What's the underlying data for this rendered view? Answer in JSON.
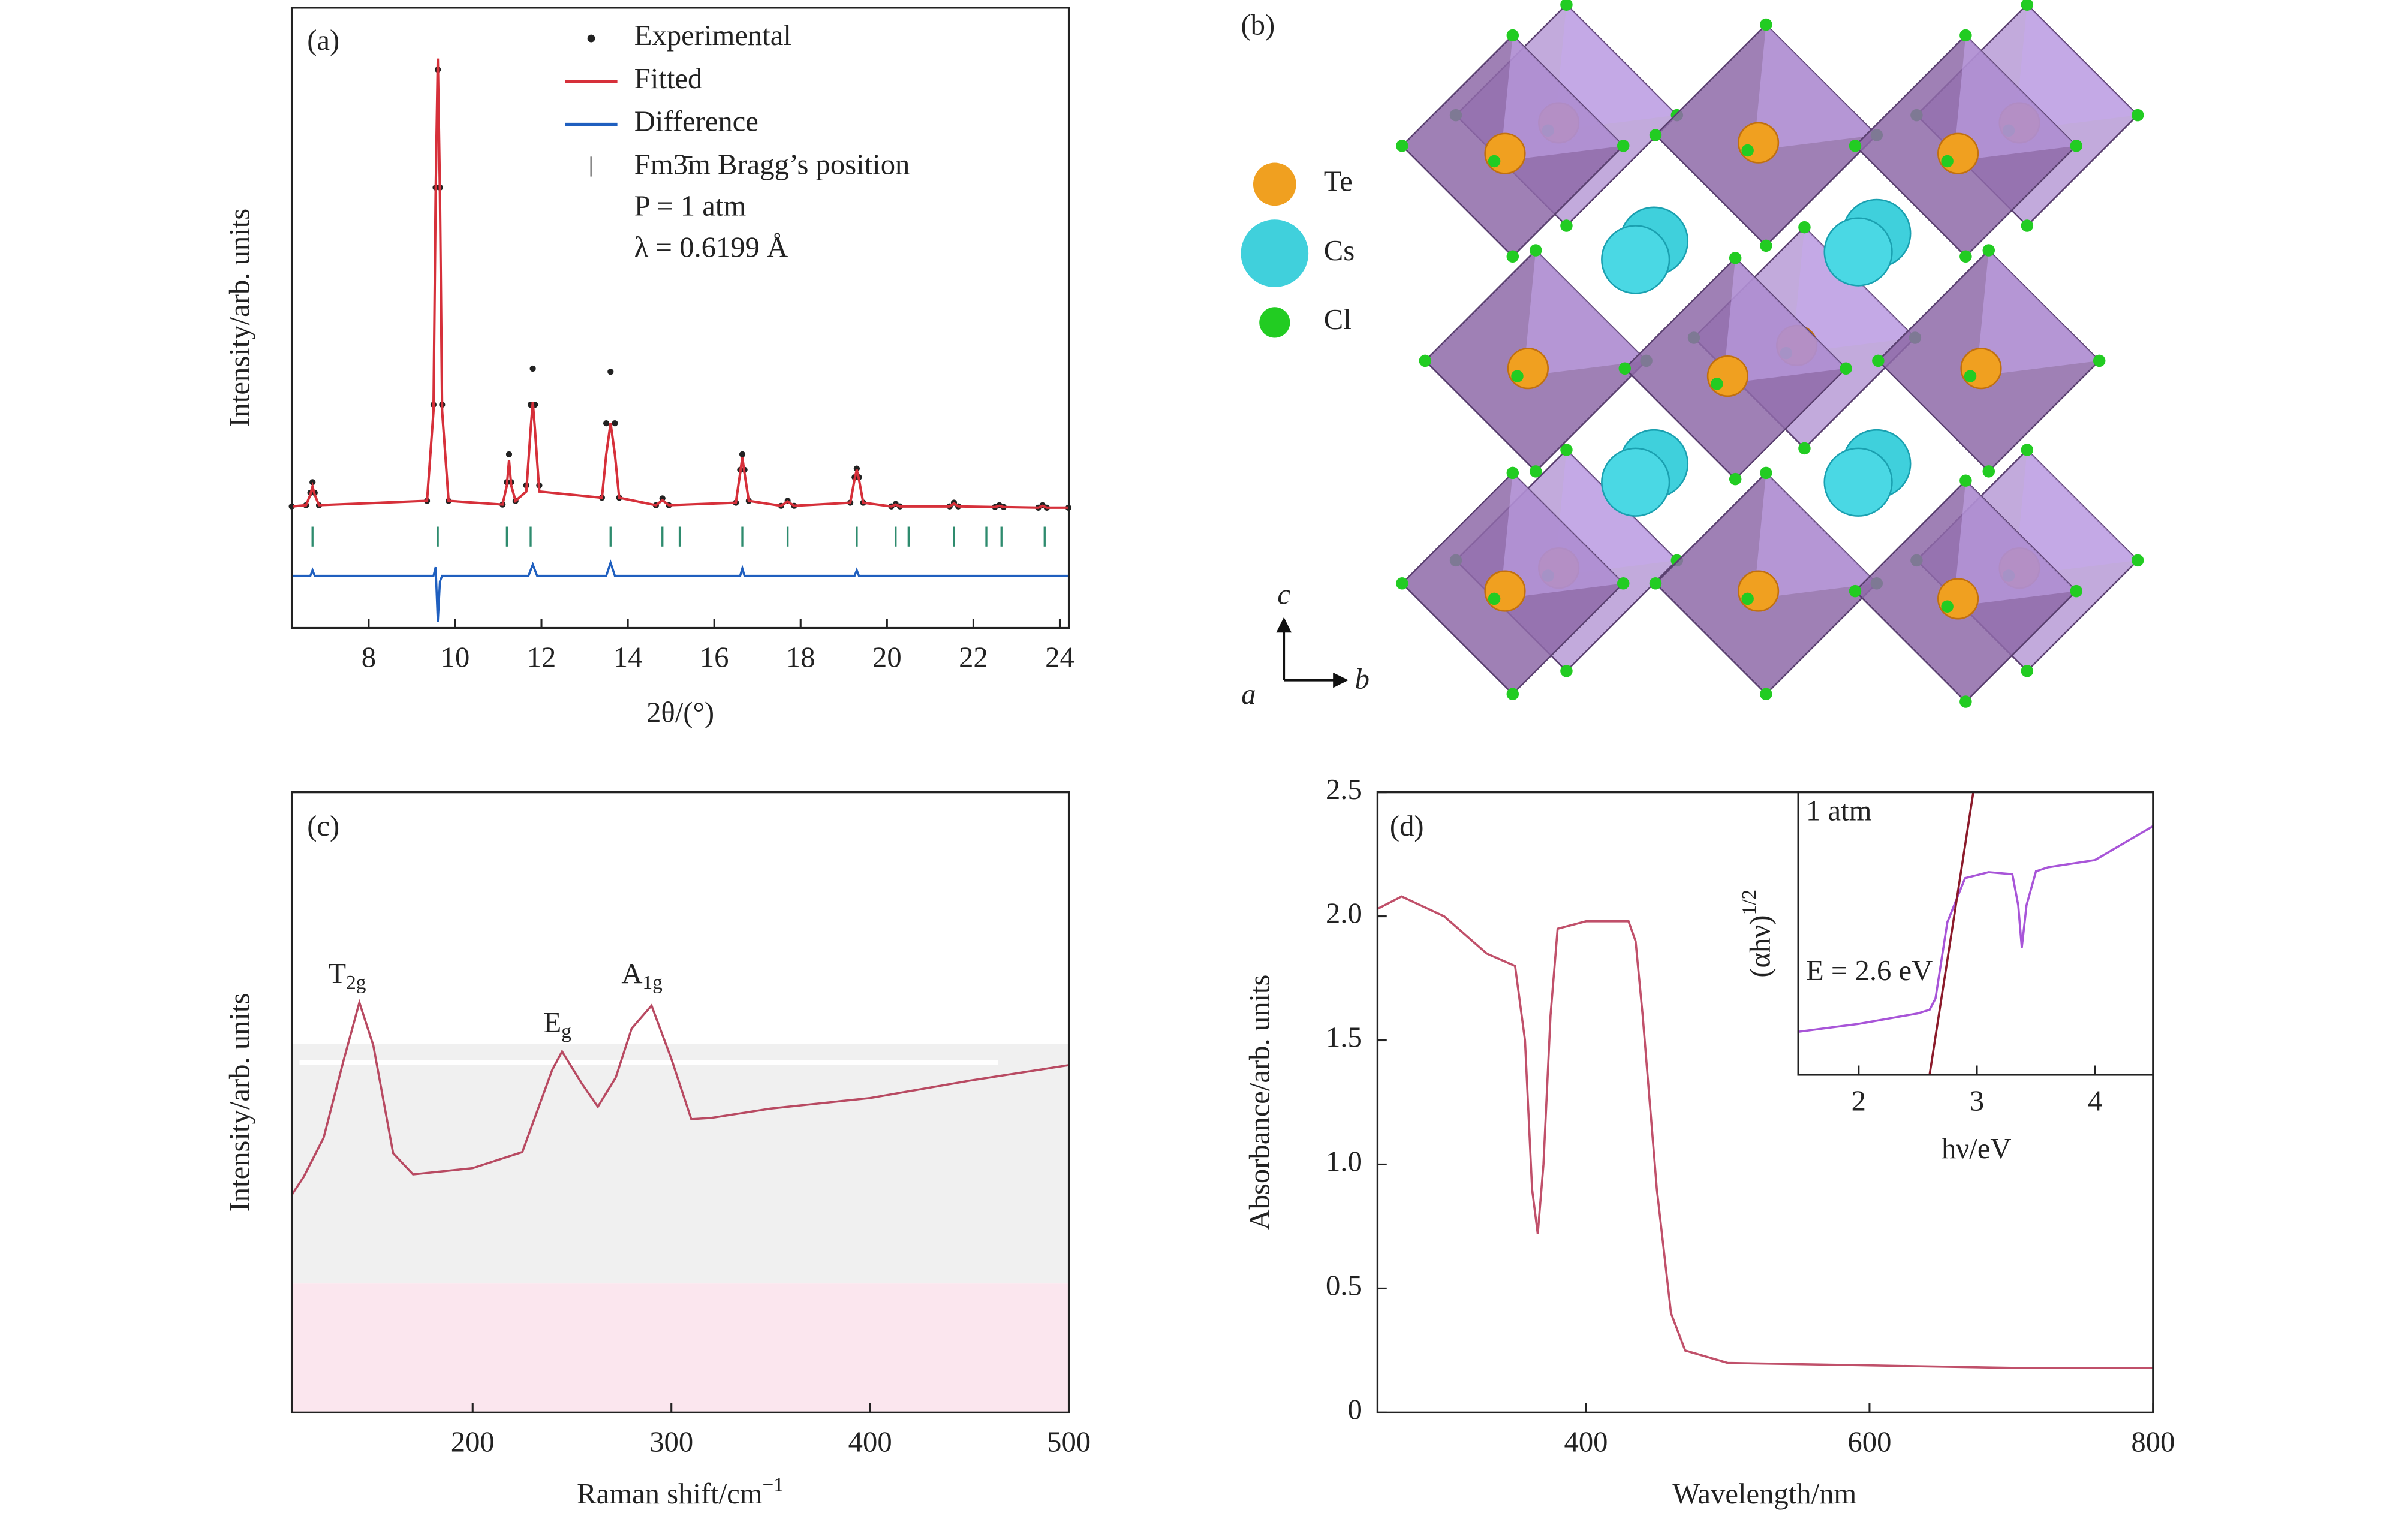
{
  "chart_data": [
    {
      "type": "line",
      "label": "(a)",
      "ylabel": "Intensity/arb. units",
      "xlabel": "2θ/(°)",
      "xlim": [
        6.22,
        24.21
      ],
      "ylim": [
        0,
        100
      ],
      "xticks": [
        8,
        10,
        12,
        14,
        16,
        18,
        20,
        22,
        24
      ],
      "annotations": [
        "P = 1 atm",
        "λ = 0.6199 Å"
      ],
      "series": [
        {
          "name": "Experimental",
          "color": "#222222",
          "style": "points",
          "x": [
            6.22,
            6.55,
            6.65,
            6.7,
            6.75,
            6.85,
            9.35,
            9.5,
            9.55,
            9.6,
            9.65,
            9.7,
            9.85,
            11.1,
            11.2,
            11.25,
            11.3,
            11.4,
            11.65,
            11.75,
            11.8,
            11.85,
            11.95,
            13.4,
            13.5,
            13.6,
            13.7,
            13.8,
            14.65,
            14.8,
            14.95,
            16.5,
            16.6,
            16.65,
            16.7,
            16.8,
            17.55,
            17.7,
            17.85,
            19.15,
            19.25,
            19.3,
            19.35,
            19.45,
            20.1,
            20.2,
            20.3,
            21.45,
            21.55,
            21.65,
            22.5,
            22.6,
            22.7,
            23.5,
            23.6,
            23.7,
            24.2
          ],
          "values": [
            19.6,
            19.8,
            21.8,
            23.5,
            21.8,
            19.8,
            20.5,
            36,
            71,
            90,
            71,
            36,
            20.5,
            19.9,
            23.5,
            28,
            23.5,
            20.5,
            23,
            36,
            41.8,
            36,
            23,
            21,
            33,
            41.3,
            33,
            21,
            19.8,
            20.9,
            19.8,
            20.2,
            25.5,
            28,
            25.5,
            20.5,
            19.7,
            20.5,
            19.7,
            20.2,
            24.3,
            25.7,
            24.3,
            20.2,
            19.6,
            20,
            19.6,
            19.6,
            20.2,
            19.6,
            19.5,
            19.8,
            19.5,
            19.4,
            19.8,
            19.4,
            19.4
          ]
        },
        {
          "name": "Fitted",
          "color": "#d6303a",
          "style": "line",
          "x": [
            6.22,
            6.55,
            6.65,
            6.7,
            6.75,
            6.85,
            9.35,
            9.5,
            9.55,
            9.6,
            9.65,
            9.7,
            9.85,
            11.1,
            11.2,
            11.25,
            11.3,
            11.4,
            11.65,
            11.75,
            11.8,
            11.85,
            11.95,
            13.4,
            13.5,
            13.6,
            13.7,
            13.8,
            14.65,
            14.8,
            14.95,
            16.5,
            16.6,
            16.65,
            16.7,
            16.8,
            17.55,
            17.7,
            17.85,
            19.15,
            19.25,
            19.3,
            19.35,
            19.45,
            20.1,
            20.2,
            20.3,
            21.45,
            21.55,
            21.65,
            22.5,
            22.6,
            22.7,
            23.5,
            23.6,
            23.7,
            24.2
          ],
          "values": [
            19.6,
            19.8,
            21.5,
            22.8,
            21.5,
            19.8,
            20.5,
            35,
            70,
            91.8,
            70,
            35,
            20.5,
            19.9,
            23,
            27,
            23,
            20.5,
            22,
            32,
            36.4,
            32,
            22,
            21,
            28,
            33,
            28,
            21,
            19.8,
            20.6,
            19.8,
            20.2,
            25,
            27.5,
            25,
            20.5,
            19.7,
            20.4,
            19.7,
            20.2,
            24,
            25.5,
            24,
            20.2,
            19.6,
            19.9,
            19.6,
            19.6,
            20.1,
            19.6,
            19.5,
            19.7,
            19.5,
            19.4,
            19.7,
            19.4,
            19.4
          ]
        },
        {
          "name": "Difference",
          "color": "#1f5fbf",
          "style": "line",
          "x": [
            6.22,
            6.65,
            6.7,
            6.75,
            9.5,
            9.55,
            9.6,
            9.65,
            9.7,
            11.7,
            11.8,
            11.9,
            13.5,
            13.6,
            13.7,
            16.6,
            16.65,
            16.7,
            19.25,
            19.3,
            19.35,
            24.2
          ],
          "values": [
            8.4,
            8.4,
            9.3,
            8.4,
            8.4,
            9.8,
            1,
            7.5,
            8.4,
            8.4,
            10.2,
            8.4,
            8.4,
            10.5,
            8.4,
            8.4,
            9.6,
            8.4,
            8.4,
            9.3,
            8.4,
            8.4
          ]
        },
        {
          "name": "Fm3̄m Bragg’s position",
          "color": "#2e8b6e",
          "style": "ticks",
          "x": [
            6.7,
            9.6,
            11.2,
            11.75,
            13.6,
            14.8,
            15.2,
            16.65,
            17.7,
            19.3,
            20.2,
            20.5,
            21.55,
            22.3,
            22.65,
            23.65
          ]
        }
      ]
    },
    {
      "type": "line",
      "label": "(c)",
      "ylabel": "Intensity/arb. units",
      "xlabel": "Raman shift/cm",
      "xlabel_sup": "−1",
      "xlim": [
        109,
        500
      ],
      "ylim": [
        0,
        100
      ],
      "xticks": [
        200,
        300,
        400,
        500
      ],
      "peak_labels": [
        {
          "main": "T",
          "sub": "2g"
        },
        {
          "main": "E",
          "sub": "g"
        },
        {
          "main": "A",
          "sub": "1g"
        }
      ],
      "series": [
        {
          "color": "#b84a62",
          "style": "line",
          "x": [
            109,
            115,
            125,
            135,
            143,
            150,
            160,
            170,
            200,
            225,
            240,
            245,
            255,
            263,
            272,
            280,
            290,
            300,
            310,
            320,
            350,
            400,
            450,
            500
          ],
          "values": [
            35.1,
            38,
            44.3,
            56.7,
            66.1,
            59.2,
            41.8,
            38.4,
            39.4,
            42,
            55.2,
            58.2,
            53,
            49.3,
            54,
            61.9,
            65.6,
            57,
            47.3,
            47.5,
            49,
            50.7,
            53.5,
            56
          ]
        }
      ]
    },
    {
      "type": "line",
      "label": "(d)",
      "ylabel": "Absorbance/arb. units",
      "xlabel": "Wavelength/nm",
      "xlim": [
        253,
        800
      ],
      "ylim": [
        0,
        2.5
      ],
      "xticks": [
        400,
        600,
        800
      ],
      "yticks": [
        0,
        0.5,
        {
          "value": 1,
          "label": "1.0"
        },
        1.5,
        {
          "value": 2,
          "label": "2.0"
        },
        2.5
      ],
      "series": [
        {
          "color": "#c0506a",
          "style": "line",
          "x": [
            253,
            270,
            300,
            330,
            350,
            357,
            362,
            366,
            370,
            375,
            380,
            400,
            430,
            435,
            440,
            450,
            460,
            470,
            500,
            600,
            700,
            800
          ],
          "values": [
            2.03,
            2.08,
            2.0,
            1.85,
            1.8,
            1.5,
            0.9,
            0.72,
            1.0,
            1.6,
            1.95,
            1.98,
            1.98,
            1.9,
            1.6,
            0.9,
            0.4,
            0.25,
            0.2,
            0.19,
            0.18,
            0.18
          ]
        }
      ]
    },
    {
      "type": "line",
      "ylabel": "(αhν)",
      "ylabel_sup": "1/2",
      "xlabel": "hν/eV",
      "xlim": [
        1.49,
        4.49
      ],
      "ylim": [
        0,
        100
      ],
      "xticks": [
        2,
        3,
        4
      ],
      "annotations": [
        "1 atm",
        "E = 2.6 eV"
      ],
      "series": [
        {
          "color": "#a855d8",
          "style": "line",
          "x": [
            1.49,
            2.0,
            2.5,
            2.6,
            2.65,
            2.75,
            2.9,
            3.1,
            3.3,
            3.35,
            3.38,
            3.42,
            3.5,
            3.6,
            4.0,
            4.49
          ],
          "values": [
            15.2,
            18,
            21.7,
            23,
            27,
            54,
            69.6,
            71.7,
            71,
            60,
            45,
            60,
            72,
            73.4,
            76,
            88
          ]
        },
        {
          "color": "#8b1a2a",
          "style": "line",
          "x": [
            2.6,
            2.97
          ],
          "values": [
            0,
            100
          ]
        }
      ]
    }
  ],
  "diagram": {
    "label": "(b)",
    "legend": [
      "Te",
      "Cs",
      "Cl"
    ],
    "axes": [
      "c",
      "a",
      "b"
    ]
  }
}
